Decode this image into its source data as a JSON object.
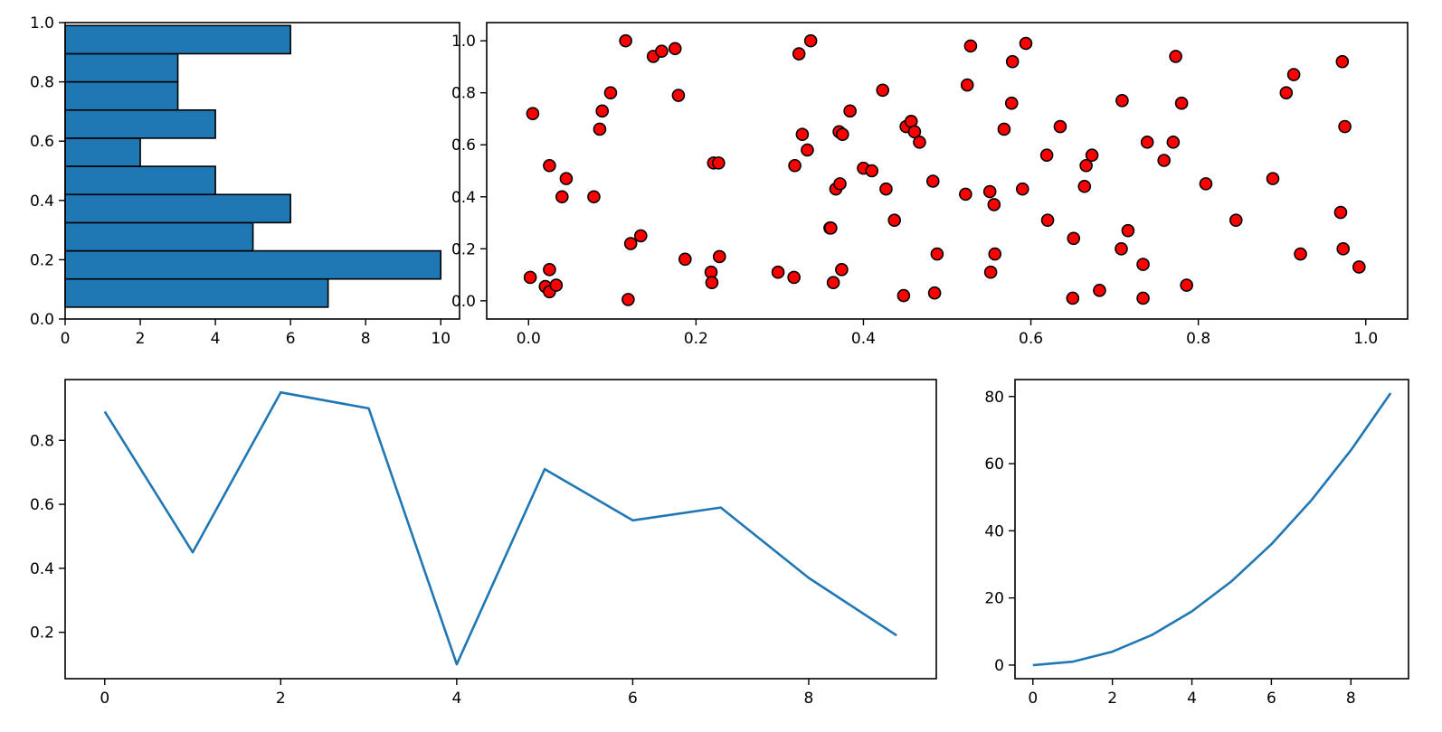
{
  "colors": {
    "bar_fill": "#1f77b4",
    "bar_edge": "#000000",
    "scatter_fill": "#ff0000",
    "scatter_edge": "#000000",
    "line": "#1f77b4",
    "axes": "#000000",
    "background": "#ffffff"
  },
  "chart_data": [
    {
      "id": "hist",
      "type": "bar",
      "orientation": "horizontal",
      "title": "",
      "xlabel": "",
      "ylabel": "",
      "xlim": [
        0,
        10.5
      ],
      "ylim": [
        0,
        1.0
      ],
      "bin_edges": [
        0.04,
        0.135,
        0.23,
        0.325,
        0.42,
        0.515,
        0.61,
        0.705,
        0.8,
        0.895,
        0.99
      ],
      "counts": [
        7,
        10,
        5,
        6,
        4,
        2,
        4,
        3,
        3,
        6
      ],
      "xticks": [
        0,
        2,
        4,
        6,
        8,
        10
      ],
      "xtick_labels": [
        "0",
        "2",
        "4",
        "6",
        "8",
        "10"
      ],
      "yticks": [
        0.0,
        0.2,
        0.4,
        0.6,
        0.8,
        1.0
      ],
      "ytick_labels": [
        "0.0",
        "0.2",
        "0.4",
        "0.6",
        "0.8",
        "1.0"
      ]
    },
    {
      "id": "scatter",
      "type": "scatter",
      "title": "",
      "xlabel": "",
      "ylabel": "",
      "xlim": [
        -0.05,
        1.05
      ],
      "ylim": [
        -0.07,
        1.07
      ],
      "xticks": [
        0.0,
        0.2,
        0.4,
        0.6,
        0.8,
        1.0
      ],
      "xtick_labels": [
        "0.0",
        "0.2",
        "0.4",
        "0.6",
        "0.8",
        "1.0"
      ],
      "yticks": [
        0.0,
        0.2,
        0.4,
        0.6,
        0.8,
        1.0
      ],
      "ytick_labels": [
        "0.0",
        "0.2",
        "0.4",
        "0.6",
        "0.8",
        "1.0"
      ],
      "points": [
        [
          0.002,
          0.09
        ],
        [
          0.005,
          0.72
        ],
        [
          0.02,
          0.055
        ],
        [
          0.025,
          0.12
        ],
        [
          0.025,
          0.035
        ],
        [
          0.025,
          0.52
        ],
        [
          0.033,
          0.06
        ],
        [
          0.04,
          0.4
        ],
        [
          0.045,
          0.47
        ],
        [
          0.078,
          0.4
        ],
        [
          0.085,
          0.66
        ],
        [
          0.088,
          0.73
        ],
        [
          0.098,
          0.8
        ],
        [
          0.116,
          1.0
        ],
        [
          0.119,
          0.005
        ],
        [
          0.122,
          0.22
        ],
        [
          0.134,
          0.25
        ],
        [
          0.149,
          0.94
        ],
        [
          0.159,
          0.96
        ],
        [
          0.175,
          0.97
        ],
        [
          0.179,
          0.79
        ],
        [
          0.187,
          0.16
        ],
        [
          0.218,
          0.11
        ],
        [
          0.219,
          0.07
        ],
        [
          0.221,
          0.53
        ],
        [
          0.227,
          0.53
        ],
        [
          0.228,
          0.17
        ],
        [
          0.298,
          0.11
        ],
        [
          0.317,
          0.09
        ],
        [
          0.318,
          0.52
        ],
        [
          0.323,
          0.95
        ],
        [
          0.327,
          0.64
        ],
        [
          0.333,
          0.58
        ],
        [
          0.337,
          1.0
        ],
        [
          0.36,
          0.28
        ],
        [
          0.361,
          0.28
        ],
        [
          0.364,
          0.07
        ],
        [
          0.367,
          0.43
        ],
        [
          0.371,
          0.65
        ],
        [
          0.372,
          0.45
        ],
        [
          0.374,
          0.12
        ],
        [
          0.375,
          0.64
        ],
        [
          0.384,
          0.73
        ],
        [
          0.4,
          0.51
        ],
        [
          0.41,
          0.5
        ],
        [
          0.423,
          0.81
        ],
        [
          0.427,
          0.43
        ],
        [
          0.437,
          0.31
        ],
        [
          0.448,
          0.02
        ],
        [
          0.451,
          0.67
        ],
        [
          0.457,
          0.69
        ],
        [
          0.461,
          0.65
        ],
        [
          0.467,
          0.61
        ],
        [
          0.483,
          0.46
        ],
        [
          0.485,
          0.03
        ],
        [
          0.488,
          0.18
        ],
        [
          0.522,
          0.41
        ],
        [
          0.524,
          0.83
        ],
        [
          0.528,
          0.98
        ],
        [
          0.551,
          0.42
        ],
        [
          0.552,
          0.11
        ],
        [
          0.556,
          0.37
        ],
        [
          0.557,
          0.18
        ],
        [
          0.568,
          0.66
        ],
        [
          0.577,
          0.76
        ],
        [
          0.578,
          0.92
        ],
        [
          0.59,
          0.43
        ],
        [
          0.594,
          0.99
        ],
        [
          0.619,
          0.56
        ],
        [
          0.62,
          0.31
        ],
        [
          0.635,
          0.67
        ],
        [
          0.651,
          0.24
        ],
        [
          0.65,
          0.01
        ],
        [
          0.664,
          0.44
        ],
        [
          0.666,
          0.52
        ],
        [
          0.673,
          0.56
        ],
        [
          0.682,
          0.04
        ],
        [
          0.708,
          0.2
        ],
        [
          0.709,
          0.77
        ],
        [
          0.716,
          0.27
        ],
        [
          0.734,
          0.14
        ],
        [
          0.734,
          0.01
        ],
        [
          0.739,
          0.61
        ],
        [
          0.759,
          0.54
        ],
        [
          0.77,
          0.61
        ],
        [
          0.773,
          0.94
        ],
        [
          0.78,
          0.76
        ],
        [
          0.786,
          0.06
        ],
        [
          0.809,
          0.45
        ],
        [
          0.845,
          0.31
        ],
        [
          0.889,
          0.47
        ],
        [
          0.905,
          0.8
        ],
        [
          0.914,
          0.87
        ],
        [
          0.922,
          0.18
        ],
        [
          0.97,
          0.34
        ],
        [
          0.972,
          0.92
        ],
        [
          0.973,
          0.2
        ],
        [
          0.975,
          0.67
        ],
        [
          0.992,
          0.13
        ]
      ]
    },
    {
      "id": "line1",
      "type": "line",
      "title": "",
      "xlabel": "",
      "ylabel": "",
      "xlim": [
        -0.45,
        9.45
      ],
      "ylim": [
        0.055,
        0.99
      ],
      "x": [
        0,
        1,
        2,
        3,
        4,
        5,
        6,
        7,
        8,
        9
      ],
      "y": [
        0.89,
        0.45,
        0.95,
        0.9,
        0.1,
        0.71,
        0.55,
        0.59,
        0.37,
        0.19
      ],
      "xticks": [
        0,
        2,
        4,
        6,
        8
      ],
      "xtick_labels": [
        "0",
        "2",
        "4",
        "6",
        "8"
      ],
      "yticks": [
        0.2,
        0.4,
        0.6,
        0.8
      ],
      "ytick_labels": [
        "0.2",
        "0.4",
        "0.6",
        "0.8"
      ]
    },
    {
      "id": "line2",
      "type": "line",
      "title": "",
      "xlabel": "",
      "ylabel": "",
      "xlim": [
        -0.45,
        9.45
      ],
      "ylim": [
        -4.05,
        85.05
      ],
      "x": [
        0,
        1,
        2,
        3,
        4,
        5,
        6,
        7,
        8,
        9
      ],
      "y": [
        0,
        1,
        4,
        9,
        16,
        25,
        36,
        49,
        64,
        81
      ],
      "xticks": [
        0,
        2,
        4,
        6,
        8
      ],
      "xtick_labels": [
        "0",
        "2",
        "4",
        "6",
        "8"
      ],
      "yticks": [
        0,
        20,
        40,
        60,
        80
      ],
      "ytick_labels": [
        "0",
        "20",
        "40",
        "60",
        "80"
      ]
    }
  ]
}
